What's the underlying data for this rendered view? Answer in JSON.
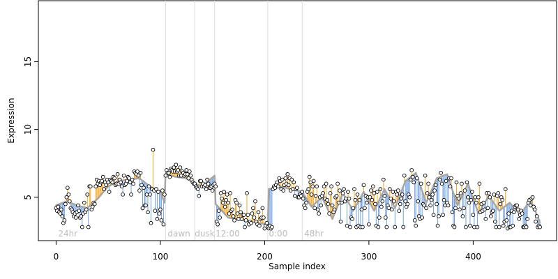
{
  "chart_data": {
    "type": "scatter",
    "title": "",
    "xlabel": "Sample index",
    "ylabel": "Expression",
    "xlim": [
      -17,
      480
    ],
    "ylim": [
      1.8,
      19.5
    ],
    "xticks": [
      0,
      100,
      200,
      300,
      400
    ],
    "yticks": [
      5,
      10,
      15
    ],
    "grid": false,
    "legend": "none",
    "phase_markers": [
      {
        "x": 105,
        "label": "",
        "label_x": 0
      },
      {
        "x": 133,
        "label": "",
        "label_x": 0
      },
      {
        "x": 152,
        "label": "",
        "label_x": 0
      },
      {
        "x": 203,
        "label": "",
        "label_x": 0
      },
      {
        "x": 236,
        "label": "",
        "label_x": 0
      }
    ],
    "phase_labels": [
      {
        "x": 2,
        "text": "24hr"
      },
      {
        "x": 107,
        "text": "dawn"
      },
      {
        "x": 133,
        "text": "dusk"
      },
      {
        "x": 153,
        "text": "12:00"
      },
      {
        "x": 204,
        "text": "0:00"
      },
      {
        "x": 238,
        "text": "48hr"
      }
    ],
    "colors": {
      "observed_point_stroke": "#000000",
      "model_line": "#a6a6a6",
      "residual_above": "#f5a623",
      "residual_below": "#6f9fe0",
      "phase_line": "#dddddd",
      "phase_label": "#bdbdbd"
    },
    "series": [
      {
        "fitted_anchor_x": [
          0,
          10,
          20,
          30,
          40,
          50,
          60,
          70,
          80,
          90,
          100,
          104,
          105,
          115,
          125,
          133,
          140,
          152,
          153,
          165,
          185,
          203,
          204,
          215,
          225,
          236,
          245,
          255,
          265,
          275,
          285,
          295,
          305,
          315,
          325,
          335,
          345,
          355,
          365,
          375,
          385,
          395,
          405,
          415,
          425,
          435,
          445,
          455,
          465
        ],
        "fitted_anchor_y": [
          4.4,
          4.7,
          4.4,
          4.2,
          4.9,
          5.8,
          6.2,
          6.3,
          6.4,
          5.8,
          5.4,
          4.6,
          6.7,
          6.5,
          6.4,
          6.0,
          5.8,
          6.6,
          4.5,
          3.5,
          3.2,
          3.0,
          5.6,
          5.8,
          5.6,
          5.4,
          4.3,
          5.0,
          3.4,
          5.3,
          4.0,
          5.4,
          4.0,
          5.6,
          4.2,
          6.2,
          6.8,
          4.6,
          6.4,
          6.7,
          4.4,
          6.0,
          3.8,
          5.1,
          4.0,
          4.6,
          3.7,
          4.8,
          3.0
        ]
      }
    ],
    "observed_y": [
      4.2,
      4.0,
      4.3,
      3.9,
      3.8,
      4.1,
      3.6,
      3.1,
      3.3,
      4.5,
      5.0,
      5.7,
      5.2,
      4.7,
      4.2,
      4.1,
      3.9,
      3.6,
      3.8,
      3.5,
      3.9,
      4.4,
      4.0,
      3.5,
      3.6,
      2.8,
      3.8,
      4.6,
      3.9,
      4.1,
      5.2,
      2.8,
      5.8,
      5.8,
      4.1,
      4.3,
      4.6,
      4.5,
      5.8,
      6.3,
      6.0,
      6.2,
      5.9,
      6.1,
      6.2,
      6.5,
      5.6,
      6.1,
      5.9,
      6.3,
      6.1,
      5.4,
      6.3,
      6.2,
      6.1,
      6.5,
      6.4,
      5.9,
      6.0,
      6.7,
      6.0,
      6.3,
      6.1,
      5.8,
      5.2,
      6.6,
      5.9,
      6.0,
      6.2,
      6.5,
      6.4,
      6.1,
      5.2,
      6.3,
      6.0,
      6.9,
      6.8,
      6.7,
      6.9,
      6.6,
      5.5,
      6.8,
      5.9,
      4.2,
      5.7,
      4.4,
      4.4,
      5.2,
      3.9,
      5.8,
      5.2,
      3.1,
      5.6,
      8.5,
      5.5,
      4.0,
      5.6,
      3.4,
      5.4,
      3.8,
      4.1,
      3.3,
      5.5,
      3.0,
      5.2,
      6.6,
      7.0,
      6.8,
      6.8,
      6.5,
      7.1,
      7.0,
      6.9,
      7.2,
      6.9,
      7.4,
      6.9,
      7.0,
      6.6,
      7.2,
      6.6,
      6.9,
      6.8,
      6.6,
      6.7,
      7.0,
      6.7,
      6.4,
      6.9,
      6.6,
      6.3,
      6.1,
      6.0,
      6.0,
      5.8,
      5.7,
      5.6,
      5.1,
      6.2,
      6.2,
      5.8,
      6.0,
      5.8,
      5.9,
      5.6,
      6.3,
      6.0,
      5.7,
      5.7,
      5.8,
      5.5,
      5.9,
      6.0,
      5.8,
      3.2,
      3.0,
      4.0,
      3.5,
      5.3,
      4.9,
      4.6,
      5.4,
      4.3,
      4.8,
      5.2,
      4.6,
      3.8,
      5.3,
      4.0,
      4.1,
      3.6,
      3.3,
      4.8,
      4.6,
      3.8,
      3.4,
      4.4,
      3.9,
      3.4,
      3.7,
      3.7,
      2.8,
      3.3,
      5.3,
      3.7,
      3.0,
      3.2,
      3.1,
      3.8,
      4.2,
      3.5,
      4.7,
      3.2,
      3.0,
      3.9,
      2.9,
      3.4,
      3.5,
      4.2,
      3.5,
      2.7,
      2.9,
      3.1,
      2.8,
      2.7,
      2.9,
      2.7,
      2.8,
      5.6,
      5.8,
      5.7,
      5.9,
      6.1,
      5.8,
      6.4,
      6.2,
      5.6,
      6.3,
      5.5,
      5.9,
      6.4,
      6.0,
      6.7,
      5.9,
      6.4,
      5.5,
      6.3,
      5.6,
      6.1,
      5.1,
      5.6,
      5.7,
      5.0,
      5.0,
      5.2,
      5.1,
      5.4,
      4.9,
      4.4,
      4.2,
      4.6,
      5.4,
      5.6,
      6.5,
      6.1,
      5.2,
      5.8,
      6.2,
      4.2,
      5.1,
      5.8,
      4.1,
      3.8,
      5.0,
      4.4,
      5.1,
      5.3,
      5.8,
      4.9,
      6.0,
      4.8,
      4.5,
      3.8,
      5.3,
      5.8,
      4.4,
      3.9,
      4.1,
      5.0,
      5.1,
      6.0,
      4.6,
      5.5,
      3.2,
      4.6,
      5.3,
      5.6,
      4.7,
      4.9,
      2.9,
      5.4,
      4.9,
      2.8,
      3.5,
      3.4,
      4.2,
      5.6,
      4.8,
      2.8,
      5.2,
      2.9,
      4.8,
      2.8,
      4.1,
      2.8,
      5.9,
      4.2,
      5.1,
      4.6,
      5.0,
      3.0,
      5.0,
      5.5,
      4.8,
      5.8,
      5.3,
      4.5,
      2.9,
      5.4,
      2.8,
      3.5,
      5.6,
      4.3,
      4.7,
      6.3,
      5.1,
      3.5,
      2.8,
      4.4,
      4.2,
      5.6,
      4.9,
      4.1,
      5.4,
      4.7,
      2.8,
      5.4,
      5.2,
      5.5,
      4.0,
      4.5,
      4.9,
      5.2,
      2.8,
      6.6,
      4.7,
      4.3,
      4.5,
      5.2,
      5.0,
      6.3,
      7.0,
      6.5,
      6.1,
      3.3,
      2.9,
      6.4,
      4.7,
      3.6,
      3.4,
      6.0,
      3.5,
      4.5,
      4.4,
      6.6,
      4.2,
      5.3,
      6.0,
      5.0,
      4.4,
      4.8,
      5.2,
      3.7,
      5.5,
      5.9,
      4.5,
      2.9,
      3.6,
      6.3,
      6.8,
      6.0,
      3.7,
      4.8,
      4.4,
      6.2,
      4.6,
      4.4,
      6.4,
      5.8,
      6.4,
      3.9,
      2.9,
      2.8,
      4.2,
      6.1,
      5.1,
      4.9,
      4.1,
      5.3,
      6.0,
      3.6,
      4.2,
      5.5,
      2.8,
      6.1,
      5.0,
      4.6,
      2.9,
      4.8,
      5.4,
      3.7,
      2.8,
      5.0,
      4.6,
      2.8,
      5.0,
      6.0,
      3.9,
      4.5,
      4.0,
      4.6,
      4.1,
      3.4,
      5.3,
      4.2,
      5.3,
      5.0,
      3.6,
      3.9,
      4.0,
      5.2,
      3.2,
      2.8,
      5.1,
      5.3,
      2.8,
      4.5,
      5.0,
      4.8,
      2.9,
      3.2,
      5.6,
      3.3,
      2.7,
      3.8,
      2.8,
      2.8,
      4.0,
      2.9,
      3.9,
      4.3,
      4.4,
      4.4,
      4.1,
      3.4,
      3.7,
      4.0,
      3.8,
      2.8,
      2.8,
      2.9,
      2.8,
      3.4,
      4.6,
      4.8,
      4.4,
      4.9,
      5.0,
      4.3,
      4.1,
      3.2,
      3.6,
      2.8,
      2.9,
      2.8
    ]
  }
}
